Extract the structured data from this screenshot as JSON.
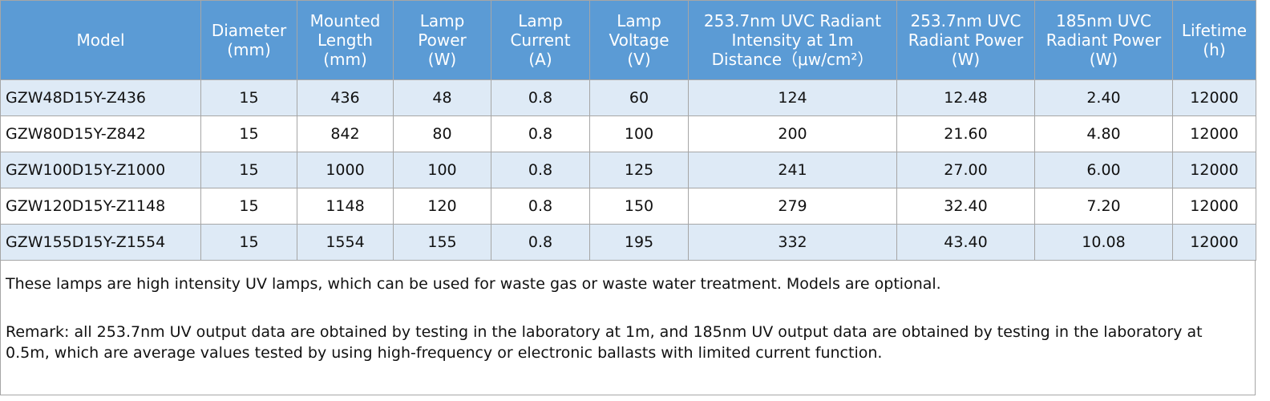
{
  "table": {
    "header": [
      [
        "Model"
      ],
      [
        "Diameter",
        "(mm)"
      ],
      [
        "Mounted",
        "Length",
        "(mm)"
      ],
      [
        "Lamp",
        "Power",
        "(W)"
      ],
      [
        "Lamp",
        "Current",
        "(A)"
      ],
      [
        "Lamp",
        "Voltage",
        "(V)"
      ],
      [
        "253.7nm UVC Radiant",
        "Intensity at 1m",
        "Distance（μw/cm²）"
      ],
      [
        "253.7nm UVC",
        "Radiant Power",
        "(W)"
      ],
      [
        "185nm UVC",
        "Radiant Power",
        "(W)"
      ],
      [
        "Lifetime",
        "(h)"
      ]
    ],
    "rows": [
      [
        "GZW48D15Y-Z436",
        "15",
        "436",
        "48",
        "0.8",
        "60",
        "124",
        "12.48",
        "2.40",
        "12000"
      ],
      [
        "GZW80D15Y-Z842",
        "15",
        "842",
        "80",
        "0.8",
        "100",
        "200",
        "21.60",
        "4.80",
        "12000"
      ],
      [
        "GZW100D15Y-Z1000",
        "15",
        "1000",
        "100",
        "0.8",
        "125",
        "241",
        "27.00",
        "6.00",
        "12000"
      ],
      [
        "GZW120D15Y-Z1148",
        "15",
        "1148",
        "120",
        "0.8",
        "150",
        "279",
        "32.40",
        "7.20",
        "12000"
      ],
      [
        "GZW155D15Y-Z1554",
        "15",
        "1554",
        "155",
        "0.8",
        "195",
        "332",
        "43.40",
        "10.08",
        "12000"
      ]
    ]
  },
  "notes": [
    "These lamps are high intensity UV lamps, which can be used for waste gas or waste water treatment. Models are optional.",
    "Remark: all 253.7nm UV output data are obtained by testing in the laboratory at 1m, and 185nm UV output data are obtained by testing in the laboratory at 0.5m, which are average values tested by using high-frequency or electronic ballasts with limited current function."
  ]
}
